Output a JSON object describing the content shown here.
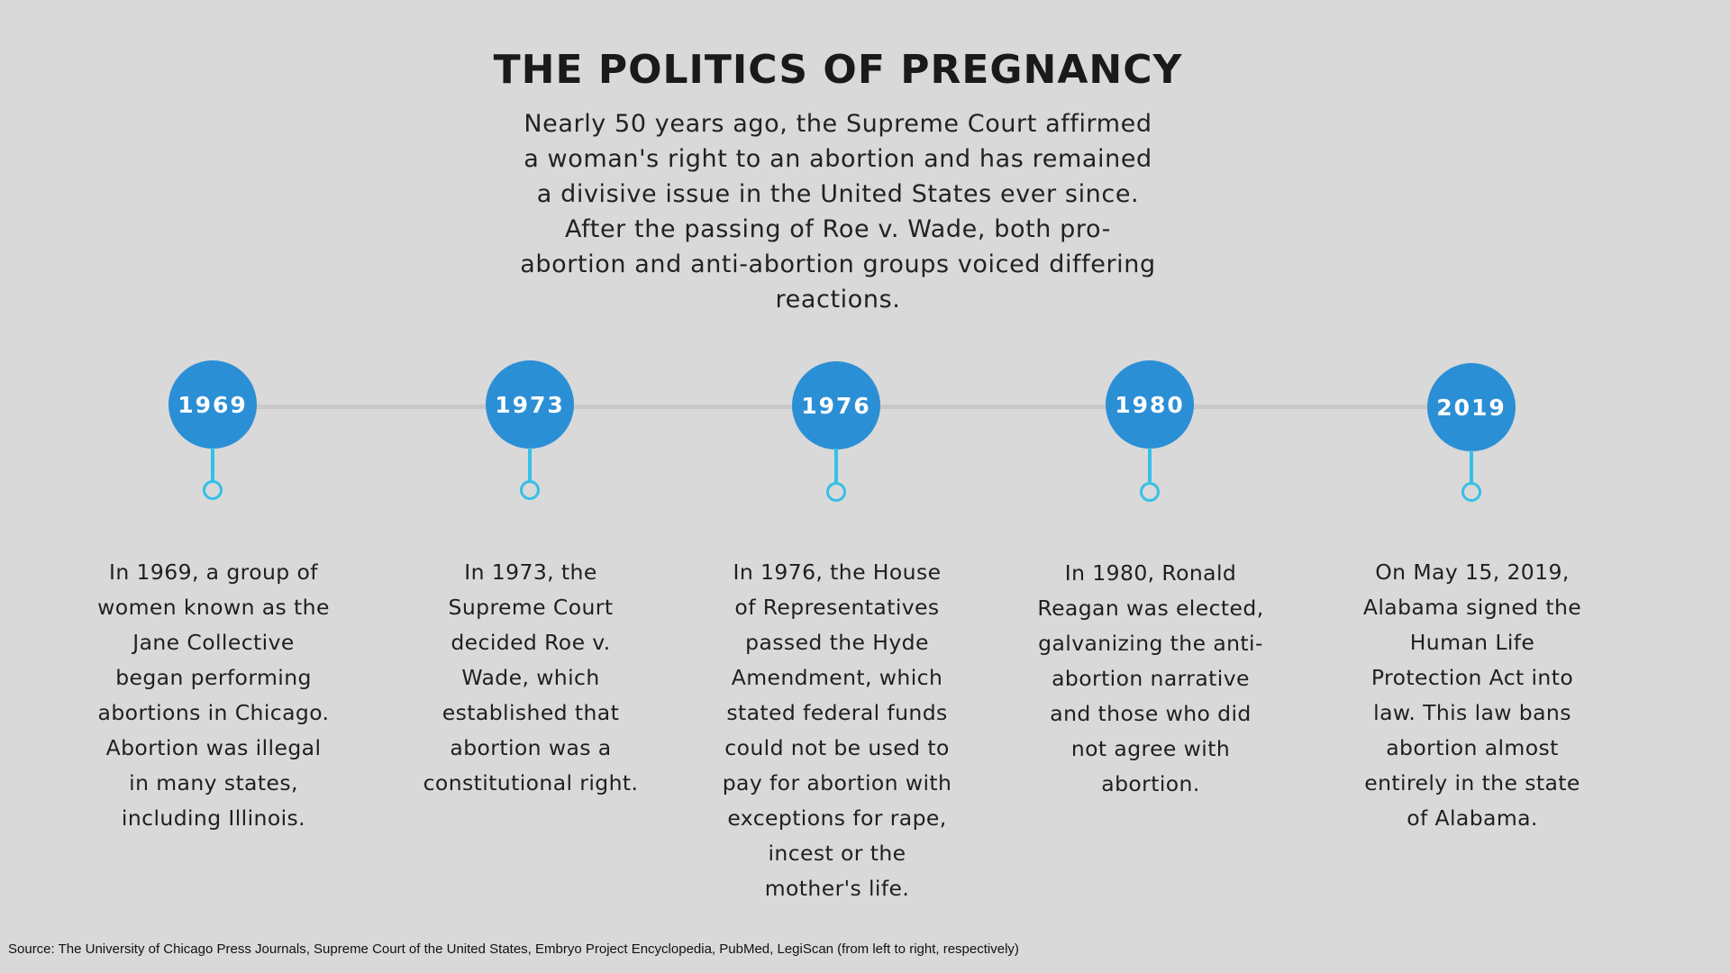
{
  "title": "THE POLITICS OF PREGNANCY",
  "intro": "Nearly 50 years ago, the Supreme Court affirmed a woman's right to an abortion and has remained a divisive issue in the United States ever since. After the passing of Roe v. Wade, both pro-abortion and anti-abortion groups voiced differing reactions.",
  "events": [
    {
      "year": "1969",
      "text": "In 1969, a group of women known as the Jane Collective began performing abortions in Chicago. Abortion was illegal in many states, including Illinois."
    },
    {
      "year": "1973",
      "text": "In 1973, the Supreme Court decided Roe v. Wade, which established that abortion was a constitutional right."
    },
    {
      "year": "1976",
      "text": "In 1976, the House of Representatives passed the Hyde Amendment, which stated federal funds could not be used to pay for abortion with exceptions for rape, incest or the mother's life."
    },
    {
      "year": "1980",
      "text": "In 1980, Ronald Reagan was elected, galvanizing the anti-abortion narrative and those who did not agree with abortion."
    },
    {
      "year": "2019",
      "text": "On May 15, 2019, Alabama signed the Human Life Protection Act into law. This law bans abortion almost entirely in the state of Alabama."
    }
  ],
  "source": "Source: The University of Chicago Press Journals, Supreme Court of the United States, Embryo Project Encyclopedia, PubMed, LegiScan (from left to right, respectively)",
  "colors": {
    "background": "#d9d9d9",
    "year_circle": "#2b8fd6",
    "connector": "#35c0e6",
    "timeline": "#c9c9c9"
  }
}
